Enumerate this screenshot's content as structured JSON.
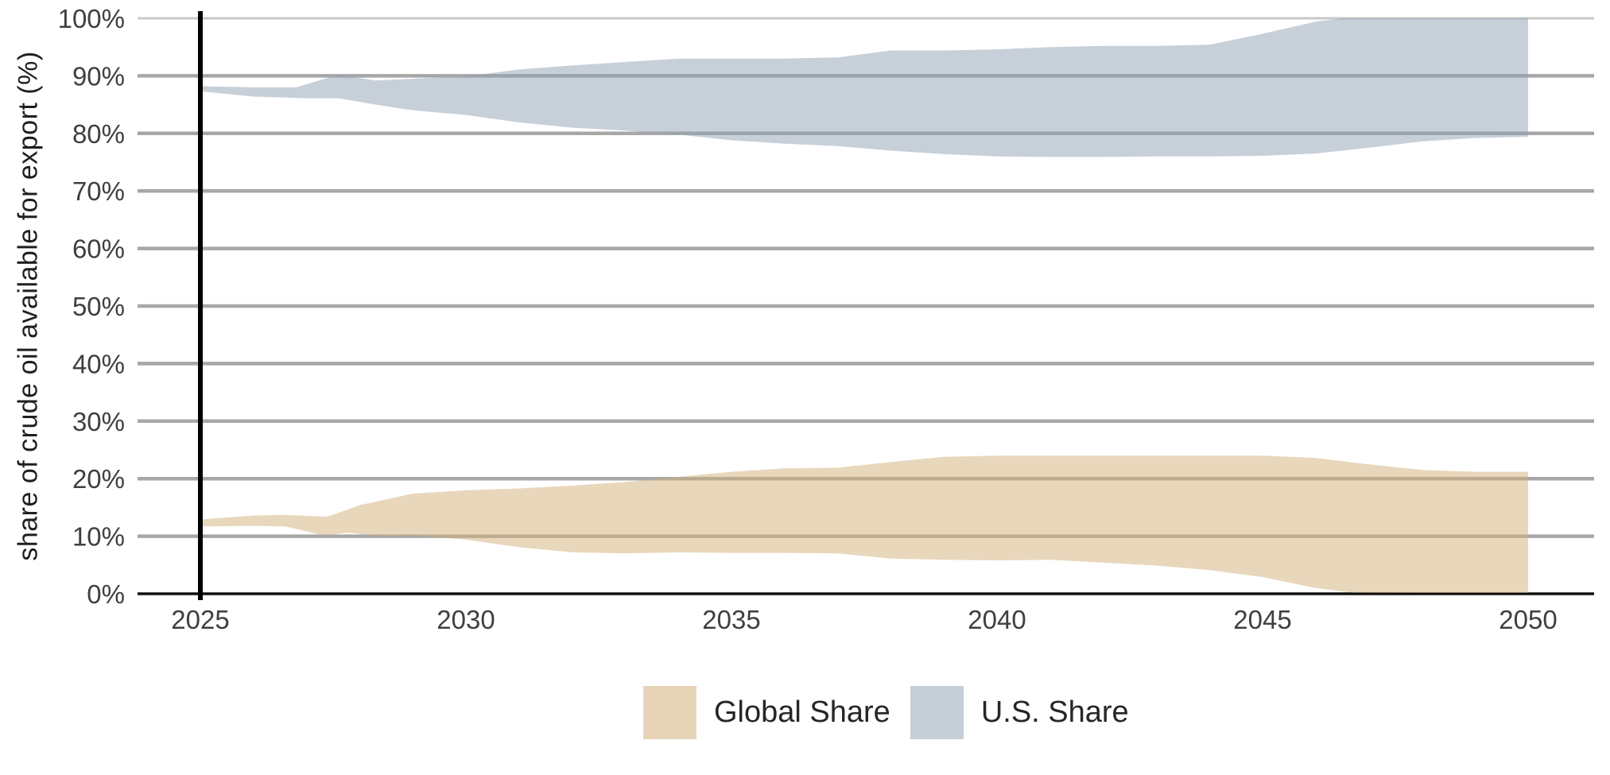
{
  "figure": {
    "background_color": "#ffffff",
    "text_color": "#3f3f3f",
    "grid_color": "#a7a7a7",
    "top_grid_color": "#c9c9c9",
    "axis_line_color": "#111111",
    "reference_line_color": "#000000"
  },
  "legend": {
    "items": [
      {
        "label": "Global Share",
        "swatch_color": "#e7d4b8"
      },
      {
        "label": "U.S. Share",
        "swatch_color": "#c6ced8"
      }
    ]
  },
  "chart_data": {
    "type": "area",
    "title": "",
    "xlabel": "",
    "ylabel": "share of crude oil available for export (%)",
    "xlim": [
      2023.8,
      2051.3
    ],
    "ylim": [
      0,
      100
    ],
    "grid": "horizontal",
    "legend_position": "bottom-center",
    "x_ticks": [
      2025,
      2030,
      2035,
      2040,
      2045,
      2050
    ],
    "x_tick_labels": [
      "2025",
      "2030",
      "2035",
      "2040",
      "2045",
      "2050"
    ],
    "y_ticks": [
      0,
      10,
      20,
      30,
      40,
      50,
      60,
      70,
      80,
      90,
      100
    ],
    "y_tick_labels": [
      "0%",
      "10%",
      "20%",
      "30%",
      "40%",
      "50%",
      "60%",
      "70%",
      "80%",
      "90%",
      "100%"
    ],
    "reference_line_x": 2025,
    "series": [
      {
        "name": "Global Share",
        "band_fill": "rgba(211,175,122,0.5)",
        "upper": [
          [
            2025,
            12.9
          ],
          [
            2026,
            13.6
          ],
          [
            2026.6,
            13.7
          ],
          [
            2027.4,
            13.4
          ],
          [
            2028,
            15.4
          ],
          [
            2029,
            17.4
          ],
          [
            2030,
            18.0
          ],
          [
            2031,
            18.3
          ],
          [
            2032,
            18.8
          ],
          [
            2033,
            19.4
          ],
          [
            2034,
            20.3
          ],
          [
            2035,
            21.2
          ],
          [
            2036,
            21.8
          ],
          [
            2037,
            21.9
          ],
          [
            2038,
            22.9
          ],
          [
            2039,
            23.8
          ],
          [
            2040,
            24.0
          ],
          [
            2041,
            24.0
          ],
          [
            2042,
            24.0
          ],
          [
            2043,
            24.0
          ],
          [
            2044,
            24.0
          ],
          [
            2045,
            24.0
          ],
          [
            2046,
            23.6
          ],
          [
            2047,
            22.5
          ],
          [
            2048,
            21.5
          ],
          [
            2049,
            21.2
          ],
          [
            2050,
            21.2
          ]
        ],
        "lower": [
          [
            2025,
            11.7
          ],
          [
            2026,
            11.8
          ],
          [
            2026.6,
            11.7
          ],
          [
            2027.3,
            10.2
          ],
          [
            2027.8,
            10.6
          ],
          [
            2028.4,
            10.0
          ],
          [
            2029,
            10.1
          ],
          [
            2030,
            9.4
          ],
          [
            2031,
            8.1
          ],
          [
            2032,
            7.2
          ],
          [
            2033,
            7.0
          ],
          [
            2034,
            7.2
          ],
          [
            2035,
            7.1
          ],
          [
            2036,
            7.1
          ],
          [
            2037,
            7.0
          ],
          [
            2038,
            6.1
          ],
          [
            2039,
            5.9
          ],
          [
            2040,
            5.8
          ],
          [
            2041,
            5.9
          ],
          [
            2042,
            5.4
          ],
          [
            2043,
            4.9
          ],
          [
            2044,
            4.1
          ],
          [
            2045,
            2.9
          ],
          [
            2046,
            1.0
          ],
          [
            2046.7,
            0.2
          ],
          [
            2048,
            0.15
          ],
          [
            2049,
            0.15
          ],
          [
            2050,
            0.15
          ]
        ]
      },
      {
        "name": "U.S. Share",
        "band_fill": "rgba(143,161,179,0.5)",
        "upper": [
          [
            2025,
            88.2
          ],
          [
            2026,
            88.0
          ],
          [
            2026.8,
            88.0
          ],
          [
            2027.6,
            90.2
          ],
          [
            2028.3,
            89.2
          ],
          [
            2029,
            89.5
          ],
          [
            2030,
            89.9
          ],
          [
            2031,
            91.1
          ],
          [
            2032,
            91.8
          ],
          [
            2033,
            92.4
          ],
          [
            2034,
            93.0
          ],
          [
            2035,
            93.0
          ],
          [
            2036,
            93.0
          ],
          [
            2037,
            93.2
          ],
          [
            2038,
            94.4
          ],
          [
            2039,
            94.4
          ],
          [
            2040,
            94.6
          ],
          [
            2041,
            95.0
          ],
          [
            2042,
            95.2
          ],
          [
            2043,
            95.2
          ],
          [
            2044,
            95.4
          ],
          [
            2045,
            97.3
          ],
          [
            2046,
            99.4
          ],
          [
            2046.5,
            100
          ],
          [
            2047,
            100
          ],
          [
            2048,
            100
          ],
          [
            2049,
            100
          ],
          [
            2050,
            100
          ]
        ],
        "lower": [
          [
            2025,
            87.3
          ],
          [
            2026,
            86.4
          ],
          [
            2027,
            86.1
          ],
          [
            2027.6,
            86.1
          ],
          [
            2028.3,
            85.0
          ],
          [
            2029,
            84.0
          ],
          [
            2030,
            83.2
          ],
          [
            2031,
            81.9
          ],
          [
            2032,
            81.0
          ],
          [
            2033,
            80.5
          ],
          [
            2034,
            79.8
          ],
          [
            2035,
            78.8
          ],
          [
            2036,
            78.2
          ],
          [
            2037,
            77.8
          ],
          [
            2038,
            77.0
          ],
          [
            2039,
            76.4
          ],
          [
            2040,
            76.0
          ],
          [
            2041,
            75.9
          ],
          [
            2042,
            75.9
          ],
          [
            2043,
            76.0
          ],
          [
            2044,
            76.0
          ],
          [
            2045,
            76.1
          ],
          [
            2046,
            76.5
          ],
          [
            2047,
            77.5
          ],
          [
            2048,
            78.6
          ],
          [
            2049,
            79.2
          ],
          [
            2050,
            79.4
          ]
        ]
      }
    ]
  }
}
